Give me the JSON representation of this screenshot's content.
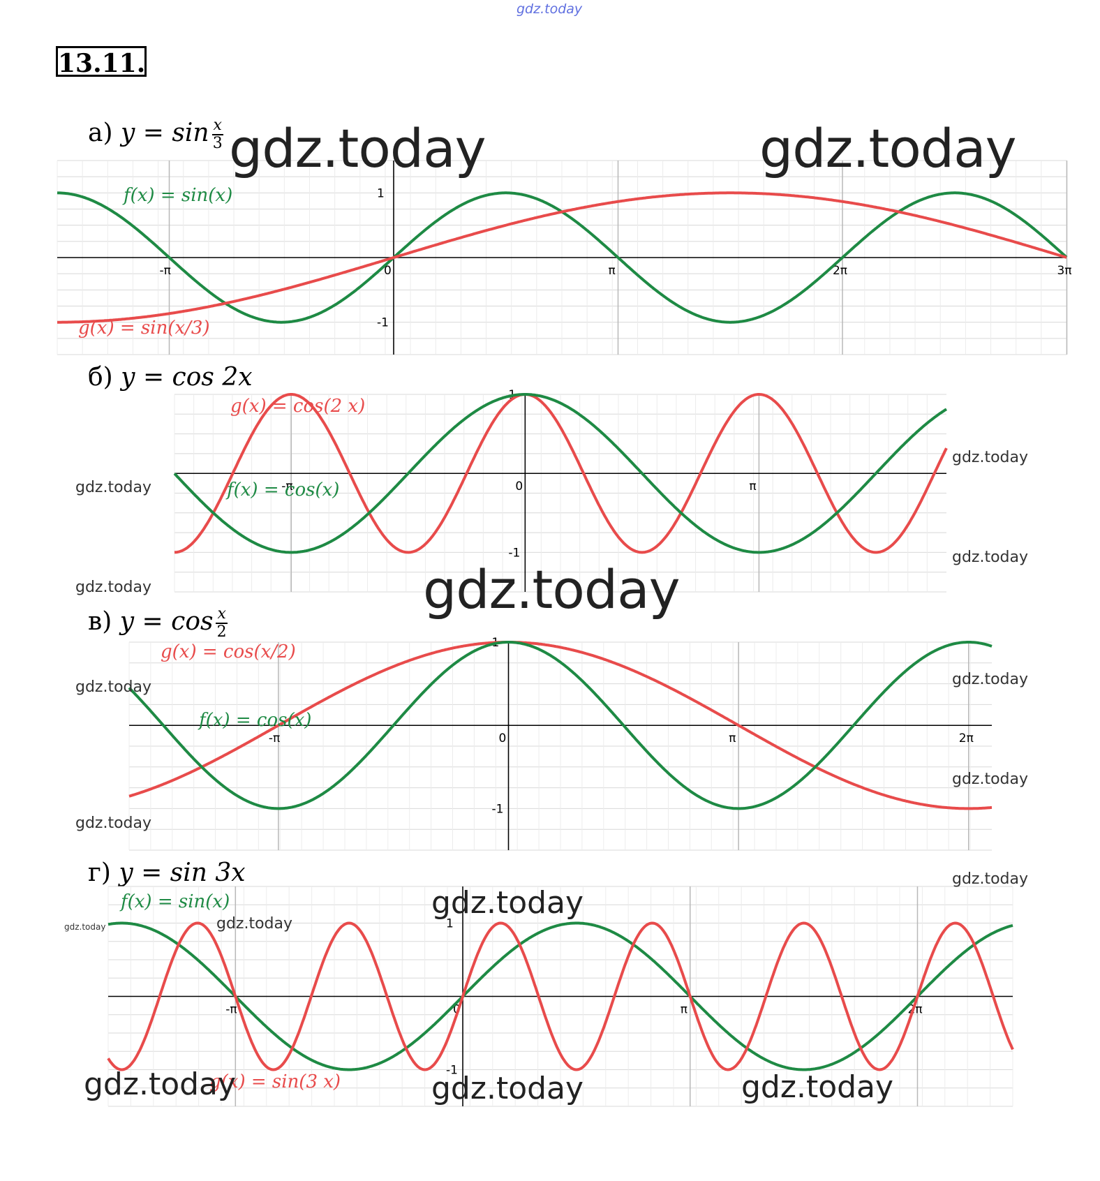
{
  "site_mark": "gdz.today",
  "problem_number": "13.11.",
  "watermark": "gdz.today",
  "parts": [
    {
      "letter": "а)",
      "fn_text": "y = sin",
      "frac_num": "x",
      "frac_den": "3"
    },
    {
      "letter": "б)",
      "fn_text": "y = cos 2x"
    },
    {
      "letter": "в)",
      "fn_text": "y = cos",
      "frac_num": "x",
      "frac_den": "2"
    },
    {
      "letter": "г)",
      "fn_text": "y = sin 3x"
    }
  ],
  "colors": {
    "f": "#1e8a44",
    "g": "#e84b4b",
    "grid": "#d8d8d8",
    "axis": "#000000"
  },
  "chart_data": [
    {
      "type": "line",
      "xlim": [
        -4.71,
        9.42
      ],
      "ylim": [
        -1.5,
        1.5
      ],
      "x_ticks": [
        {
          "v": -3.1416,
          "t": "-π"
        },
        {
          "v": 0,
          "t": "0"
        },
        {
          "v": 3.1416,
          "t": "π"
        },
        {
          "v": 6.2832,
          "t": "2π"
        },
        {
          "v": 9.4248,
          "t": "3π"
        }
      ],
      "y_ticks": [
        {
          "v": 1,
          "t": "1"
        },
        {
          "v": -1,
          "t": "-1"
        }
      ],
      "series": [
        {
          "name": "f(x) = sin(x)",
          "key": "f",
          "fn": "sin",
          "k": 1
        },
        {
          "name": "g(x) = sin(x/3)",
          "key": "g",
          "fn": "sin",
          "k": 0.3333
        }
      ]
    },
    {
      "type": "line",
      "xlim": [
        -4.71,
        5.66
      ],
      "ylim": [
        -1.5,
        1.0
      ],
      "x_ticks": [
        {
          "v": -3.1416,
          "t": "-π"
        },
        {
          "v": 0,
          "t": "0"
        },
        {
          "v": 3.1416,
          "t": "π"
        }
      ],
      "y_ticks": [
        {
          "v": 1,
          "t": "1"
        },
        {
          "v": -1,
          "t": "-1"
        }
      ],
      "series": [
        {
          "name": "g(x) = cos(2 x)",
          "key": "g",
          "fn": "cos",
          "k": 2
        },
        {
          "name": "f(x) = cos(x)",
          "key": "f",
          "fn": "cos",
          "k": 1
        }
      ]
    },
    {
      "type": "line",
      "xlim": [
        -5.18,
        6.6
      ],
      "ylim": [
        -1.5,
        1.0
      ],
      "x_ticks": [
        {
          "v": -3.1416,
          "t": "-π"
        },
        {
          "v": 0,
          "t": "0"
        },
        {
          "v": 3.1416,
          "t": "π"
        },
        {
          "v": 6.2832,
          "t": "2π"
        }
      ],
      "y_ticks": [
        {
          "v": 1,
          "t": "1"
        },
        {
          "v": -1,
          "t": "-1"
        }
      ],
      "series": [
        {
          "name": "g(x) = cos(x/2)",
          "key": "g",
          "fn": "cos",
          "k": 0.5
        },
        {
          "name": "f(x) = cos(x)",
          "key": "f",
          "fn": "cos",
          "k": 1
        }
      ]
    },
    {
      "type": "line",
      "xlim": [
        -4.9,
        7.6
      ],
      "ylim": [
        -1.5,
        1.5
      ],
      "x_ticks": [
        {
          "v": -3.1416,
          "t": "-π"
        },
        {
          "v": 0,
          "t": "0"
        },
        {
          "v": 3.1416,
          "t": "π"
        },
        {
          "v": 6.2832,
          "t": "2π"
        }
      ],
      "y_ticks": [
        {
          "v": 1,
          "t": "1"
        },
        {
          "v": -1,
          "t": "-1"
        }
      ],
      "series": [
        {
          "name": "f(x) = sin(x)",
          "key": "f",
          "fn": "sin",
          "k": 1
        },
        {
          "name": "g(x) = sin(3 x)",
          "key": "g",
          "fn": "sin",
          "k": 3
        }
      ]
    }
  ]
}
